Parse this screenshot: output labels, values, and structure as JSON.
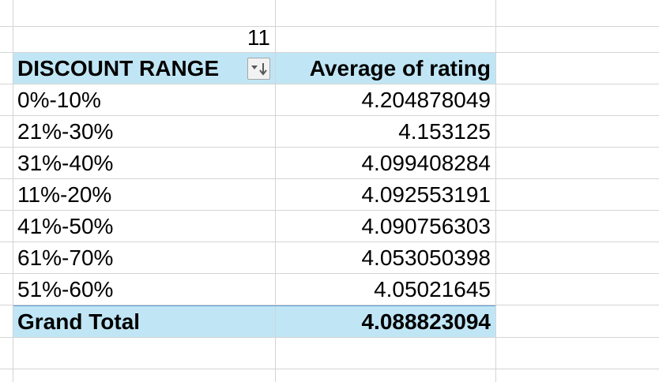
{
  "sheet": {
    "cell_above": "11",
    "pivot": {
      "row_header": "DISCOUNT RANGE",
      "value_header": "Average of rating",
      "rows": [
        {
          "label": "0%-10%",
          "value": "4.204878049"
        },
        {
          "label": "21%-30%",
          "value": "4.153125"
        },
        {
          "label": "31%-40%",
          "value": "4.099408284"
        },
        {
          "label": "11%-20%",
          "value": "4.092553191"
        },
        {
          "label": "41%-50%",
          "value": "4.090756303"
        },
        {
          "label": "61%-70%",
          "value": "4.053050398"
        },
        {
          "label": "51%-60%",
          "value": "4.05021645"
        }
      ],
      "total": {
        "label": "Grand Total",
        "value": "4.088823094"
      },
      "filter_icon": "sort-descending-filter-icon"
    }
  },
  "colors": {
    "header_fill": "#c0e6f5",
    "gridline": "#d4d4d4",
    "total_rule": "#5b9bd5"
  }
}
